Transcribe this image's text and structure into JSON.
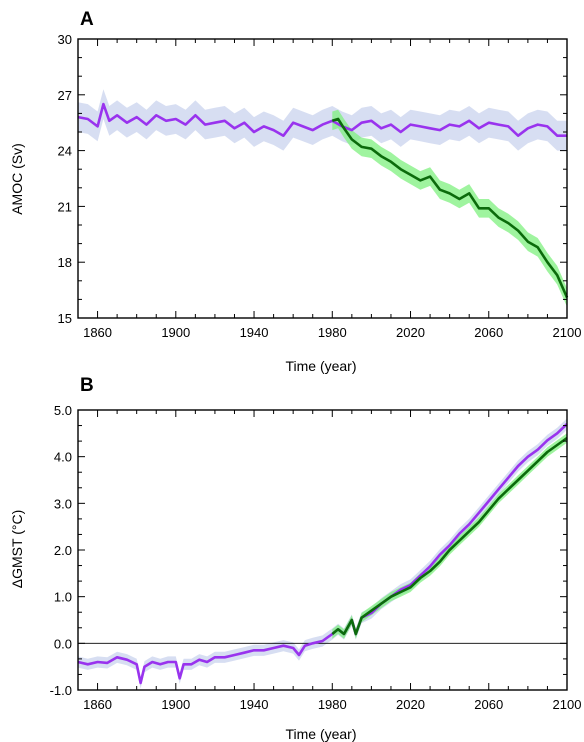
{
  "colors": {
    "control": "#9933ee",
    "control_band": "#c9d3ee",
    "forced": "#0b6b0b",
    "forced_band": "#7ff07f",
    "axis": "#000000"
  },
  "panels": [
    {
      "label": "A",
      "xlabel": "Time (year)",
      "ylabel": "AMOC (Sv)"
    },
    {
      "label": "B",
      "xlabel": "Time (year)",
      "ylabel": "ΔGMST (°C)"
    }
  ],
  "chart_data": [
    {
      "type": "line",
      "title": "",
      "panel": "A",
      "xlabel": "Time (year)",
      "ylabel": "AMOC (Sv)",
      "xlim": [
        1850,
        2100
      ],
      "ylim": [
        15,
        30
      ],
      "xticks": [
        1860,
        1900,
        1940,
        1980,
        2020,
        2060,
        2100
      ],
      "yticks": [
        15,
        18,
        21,
        24,
        27,
        30
      ],
      "xtick_labels": [
        "1860",
        "1900",
        "1940",
        "1980",
        "2020",
        "2060",
        "2100"
      ],
      "ytick_labels": [
        "15",
        "18",
        "21",
        "24",
        "27",
        "30"
      ],
      "grid": false,
      "series": [
        {
          "key": "control",
          "x": [
            1850,
            1855,
            1860,
            1863,
            1866,
            1870,
            1875,
            1880,
            1885,
            1890,
            1895,
            1900,
            1905,
            1910,
            1915,
            1920,
            1925,
            1930,
            1935,
            1940,
            1945,
            1950,
            1955,
            1960,
            1965,
            1970,
            1975,
            1980,
            1985,
            1990,
            1995,
            2000,
            2005,
            2010,
            2015,
            2020,
            2025,
            2030,
            2035,
            2040,
            2045,
            2050,
            2055,
            2060,
            2065,
            2070,
            2075,
            2080,
            2085,
            2090,
            2095,
            2100
          ],
          "y": [
            25.8,
            25.7,
            25.3,
            26.5,
            25.6,
            25.9,
            25.5,
            25.8,
            25.4,
            25.9,
            25.6,
            25.7,
            25.4,
            25.9,
            25.4,
            25.5,
            25.6,
            25.2,
            25.5,
            25.0,
            25.3,
            25.1,
            24.8,
            25.5,
            25.3,
            25.1,
            25.4,
            25.6,
            25.3,
            25.1,
            25.5,
            25.6,
            25.2,
            25.4,
            25.0,
            25.4,
            25.3,
            25.2,
            25.1,
            25.4,
            25.3,
            25.6,
            25.2,
            25.5,
            25.4,
            25.3,
            24.8,
            25.2,
            25.4,
            25.3,
            24.8,
            24.8
          ],
          "band_halfwidth": 0.8
        },
        {
          "key": "forced",
          "x": [
            1980,
            1983,
            1986,
            1990,
            1995,
            2000,
            2005,
            2010,
            2015,
            2020,
            2025,
            2030,
            2035,
            2040,
            2045,
            2050,
            2055,
            2060,
            2065,
            2070,
            2075,
            2080,
            2085,
            2090,
            2095,
            2100
          ],
          "y": [
            25.6,
            25.7,
            25.2,
            24.6,
            24.2,
            24.1,
            23.7,
            23.4,
            23.0,
            22.7,
            22.4,
            22.6,
            21.9,
            21.7,
            21.4,
            21.7,
            20.9,
            20.9,
            20.4,
            20.1,
            19.7,
            19.1,
            18.8,
            18.0,
            17.3,
            16.1
          ],
          "band_halfwidth": 0.5
        }
      ]
    },
    {
      "type": "line",
      "title": "",
      "panel": "B",
      "xlabel": "Time (year)",
      "ylabel": "ΔGMST (°C)",
      "xlim": [
        1850,
        2100
      ],
      "ylim": [
        -1.0,
        5.0
      ],
      "xticks": [
        1860,
        1900,
        1940,
        1980,
        2020,
        2060,
        2100
      ],
      "yticks": [
        -1.0,
        0.0,
        1.0,
        2.0,
        3.0,
        4.0,
        5.0
      ],
      "xtick_labels": [
        "1860",
        "1900",
        "1940",
        "1980",
        "2020",
        "2060",
        "2100"
      ],
      "ytick_labels": [
        "-1.0",
        "0.0",
        "1.0",
        "2.0",
        "3.0",
        "4.0",
        "5.0"
      ],
      "hline": 0.0,
      "grid": false,
      "series": [
        {
          "key": "control",
          "x": [
            1850,
            1855,
            1860,
            1865,
            1870,
            1875,
            1880,
            1882,
            1884,
            1888,
            1892,
            1896,
            1900,
            1902,
            1904,
            1908,
            1912,
            1916,
            1920,
            1925,
            1930,
            1935,
            1940,
            1945,
            1950,
            1955,
            1960,
            1963,
            1966,
            1970,
            1975,
            1980,
            1983,
            1986,
            1990,
            1992,
            1995,
            2000,
            2005,
            2010,
            2015,
            2020,
            2025,
            2030,
            2035,
            2040,
            2045,
            2050,
            2055,
            2060,
            2065,
            2070,
            2075,
            2080,
            2085,
            2090,
            2095,
            2100
          ],
          "y": [
            -0.4,
            -0.45,
            -0.4,
            -0.42,
            -0.3,
            -0.35,
            -0.45,
            -0.85,
            -0.5,
            -0.4,
            -0.45,
            -0.4,
            -0.4,
            -0.75,
            -0.45,
            -0.45,
            -0.35,
            -0.4,
            -0.3,
            -0.3,
            -0.25,
            -0.2,
            -0.15,
            -0.15,
            -0.1,
            -0.05,
            -0.1,
            -0.25,
            -0.05,
            0.0,
            0.05,
            0.2,
            0.3,
            0.2,
            0.5,
            0.2,
            0.55,
            0.65,
            0.85,
            1.0,
            1.15,
            1.25,
            1.45,
            1.65,
            1.9,
            2.1,
            2.35,
            2.55,
            2.8,
            3.05,
            3.3,
            3.55,
            3.8,
            4.0,
            4.15,
            4.35,
            4.5,
            4.7
          ],
          "band_halfwidth": 0.12
        },
        {
          "key": "forced",
          "x": [
            1980,
            1983,
            1986,
            1990,
            1992,
            1995,
            2000,
            2005,
            2010,
            2015,
            2020,
            2025,
            2030,
            2035,
            2040,
            2045,
            2050,
            2055,
            2060,
            2065,
            2070,
            2075,
            2080,
            2085,
            2090,
            2095,
            2100
          ],
          "y": [
            0.2,
            0.3,
            0.2,
            0.5,
            0.2,
            0.55,
            0.7,
            0.85,
            1.0,
            1.1,
            1.2,
            1.4,
            1.55,
            1.75,
            2.0,
            2.2,
            2.4,
            2.6,
            2.85,
            3.1,
            3.3,
            3.5,
            3.7,
            3.9,
            4.1,
            4.25,
            4.4
          ],
          "band_halfwidth": 0.1
        }
      ]
    }
  ]
}
